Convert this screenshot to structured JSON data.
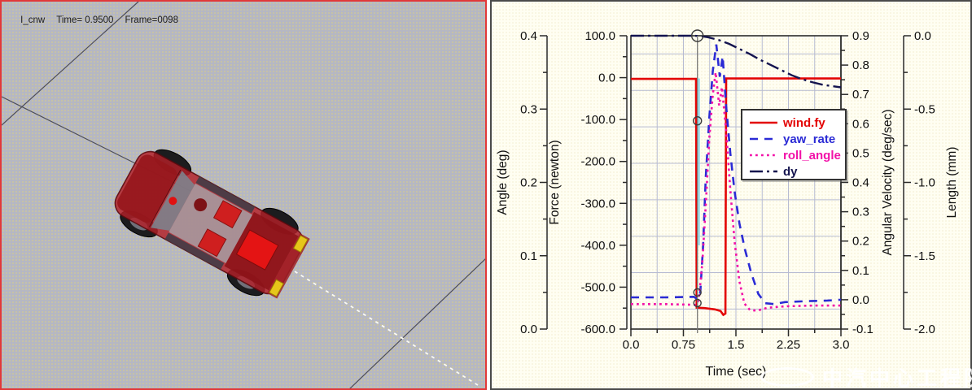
{
  "left_panel": {
    "status": {
      "model": "I_cnw",
      "time": "Time= 0.9500",
      "frame": "Frame=0098"
    }
  },
  "watermark": {
    "logo": "oval-logo",
    "text": "中汽中心工程院"
  },
  "chart_data": {
    "type": "line",
    "title": "",
    "grid": true,
    "legend_position": "inside-right",
    "axes": {
      "x": {
        "label": "Time (sec)",
        "min": 0,
        "max": 3,
        "minor_step": 0.375,
        "ticks": [
          {
            "v": 0,
            "l": "0.0"
          },
          {
            "v": 0.75,
            "l": "0.75"
          },
          {
            "v": 1.5,
            "l": "1.5"
          },
          {
            "v": 2.25,
            "l": "2.25"
          },
          {
            "v": 3,
            "l": "3.0"
          }
        ]
      },
      "angle": {
        "label": "Angle (deg)",
        "min": 0,
        "max": 0.4,
        "minor_step": 0.05,
        "ticks": [
          {
            "v": 0,
            "l": "0.0"
          },
          {
            "v": 0.1,
            "l": "0.1"
          },
          {
            "v": 0.2,
            "l": "0.2"
          },
          {
            "v": 0.3,
            "l": "0.3"
          },
          {
            "v": 0.4,
            "l": "0.4"
          }
        ]
      },
      "force": {
        "label": "Force (newton)",
        "min": -600,
        "max": 100,
        "minor_step": 50,
        "ticks": [
          {
            "v": 100,
            "l": "100.0"
          },
          {
            "v": 0,
            "l": "0.0"
          },
          {
            "v": -100,
            "l": "-100.0"
          },
          {
            "v": -200,
            "l": "-200.0"
          },
          {
            "v": -300,
            "l": "-300.0"
          },
          {
            "v": -400,
            "l": "-400.0"
          },
          {
            "v": -500,
            "l": "-500.0"
          },
          {
            "v": -600,
            "l": "-600.0"
          }
        ]
      },
      "angvel": {
        "label": "Angular Velocity (deg/sec)",
        "min": -0.1,
        "max": 0.9,
        "minor_step": 0.05,
        "ticks": [
          {
            "v": 0.9,
            "l": "0.9"
          },
          {
            "v": 0.8,
            "l": "0.8"
          },
          {
            "v": 0.7,
            "l": "0.7"
          },
          {
            "v": 0.6,
            "l": "0.6"
          },
          {
            "v": 0.5,
            "l": "0.5"
          },
          {
            "v": 0.4,
            "l": "0.4"
          },
          {
            "v": 0.3,
            "l": "0.3"
          },
          {
            "v": 0.2,
            "l": "0.2"
          },
          {
            "v": 0.1,
            "l": "0.1"
          },
          {
            "v": 0,
            "l": "0.0"
          },
          {
            "v": -0.1,
            "l": "-0.1"
          }
        ]
      },
      "length": {
        "label": "Length (mm)",
        "min": -2,
        "max": 0,
        "minor_step": 0.25,
        "ticks": [
          {
            "v": 0,
            "l": "0.0"
          },
          {
            "v": -0.5,
            "l": "-0.5"
          },
          {
            "v": -1,
            "l": "-1.0"
          },
          {
            "v": -1.5,
            "l": "-1.5"
          },
          {
            "v": -2,
            "l": "-2.0"
          }
        ]
      }
    },
    "series": [
      {
        "name": "wind.fy",
        "axis": "force",
        "color": "#e30505",
        "style": "solid",
        "points": [
          [
            0,
            -3
          ],
          [
            0.93,
            -3
          ],
          [
            0.94,
            -549
          ],
          [
            1.05,
            -550
          ],
          [
            1.2,
            -553
          ],
          [
            1.28,
            -557
          ],
          [
            1.32,
            -566
          ],
          [
            1.35,
            -563
          ],
          [
            1.36,
            -2
          ],
          [
            3.0,
            -2
          ]
        ]
      },
      {
        "name": "yaw_rate",
        "axis": "angvel",
        "color": "#2b2bd5",
        "style": "dashed",
        "points": [
          [
            0,
            0.008
          ],
          [
            0.5,
            0.008
          ],
          [
            0.9,
            0.01
          ],
          [
            0.95,
            0.002
          ],
          [
            0.99,
            0.02
          ],
          [
            1.03,
            0.18
          ],
          [
            1.07,
            0.42
          ],
          [
            1.12,
            0.62
          ],
          [
            1.17,
            0.78
          ],
          [
            1.22,
            0.87
          ],
          [
            1.27,
            0.76
          ],
          [
            1.31,
            0.83
          ],
          [
            1.36,
            0.66
          ],
          [
            1.42,
            0.5
          ],
          [
            1.48,
            0.37
          ],
          [
            1.55,
            0.26
          ],
          [
            1.63,
            0.17
          ],
          [
            1.72,
            0.09
          ],
          [
            1.82,
            0.02
          ],
          [
            1.92,
            -0.012
          ],
          [
            2.05,
            -0.015
          ],
          [
            2.2,
            -0.008
          ],
          [
            2.5,
            -0.005
          ],
          [
            2.8,
            -0.003
          ],
          [
            3.0,
            0.0
          ]
        ]
      },
      {
        "name": "roll_angle",
        "axis": "angle",
        "color": "#f211a8",
        "style": "dotted",
        "points": [
          [
            0,
            0.034
          ],
          [
            0.5,
            0.034
          ],
          [
            0.93,
            0.033
          ],
          [
            0.97,
            0.04
          ],
          [
            1.02,
            0.09
          ],
          [
            1.07,
            0.17
          ],
          [
            1.12,
            0.26
          ],
          [
            1.17,
            0.32
          ],
          [
            1.21,
            0.35
          ],
          [
            1.26,
            0.305
          ],
          [
            1.3,
            0.33
          ],
          [
            1.36,
            0.27
          ],
          [
            1.42,
            0.19
          ],
          [
            1.48,
            0.12
          ],
          [
            1.55,
            0.065
          ],
          [
            1.62,
            0.035
          ],
          [
            1.7,
            0.026
          ],
          [
            1.8,
            0.025
          ],
          [
            1.95,
            0.029
          ],
          [
            2.2,
            0.031
          ],
          [
            2.6,
            0.032
          ],
          [
            3.0,
            0.032
          ]
        ]
      },
      {
        "name": "dy",
        "axis": "length",
        "color": "#14144f",
        "style": "dashdot",
        "points": [
          [
            0,
            0
          ],
          [
            0.9,
            0
          ],
          [
            1.0,
            -0.003
          ],
          [
            1.1,
            -0.01
          ],
          [
            1.25,
            -0.028
          ],
          [
            1.4,
            -0.055
          ],
          [
            1.55,
            -0.09
          ],
          [
            1.7,
            -0.125
          ],
          [
            1.85,
            -0.165
          ],
          [
            2.0,
            -0.2
          ],
          [
            2.15,
            -0.235
          ],
          [
            2.3,
            -0.27
          ],
          [
            2.45,
            -0.297
          ],
          [
            2.6,
            -0.318
          ],
          [
            2.75,
            -0.335
          ],
          [
            2.9,
            -0.345
          ],
          [
            3.0,
            -0.352
          ]
        ]
      }
    ],
    "cursor": {
      "time": 0.95,
      "markers": [
        {
          "axis": "length",
          "value": 0.0,
          "r": 7
        },
        {
          "axis": "force",
          "value": -103,
          "r": 5
        },
        {
          "axis": "angvel",
          "value": 0.025,
          "r": 4.5
        },
        {
          "axis": "angle",
          "value": 0.0355,
          "r": 4.5
        }
      ]
    }
  }
}
